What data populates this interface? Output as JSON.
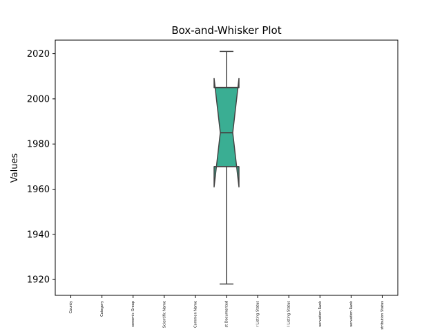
{
  "chart_data": {
    "type": "box",
    "title": "Box-and-Whisker Plot",
    "xlabel": "",
    "ylabel": "Values",
    "categories": [
      "County",
      "Category",
      "xonomic Group",
      "Scientific Name",
      "Common Name",
      "st Documented",
      "r Listing Status",
      "l Listing Status",
      "servation Rank",
      "servation Rank",
      "stribution Status"
    ],
    "yticks": [
      1920,
      1940,
      1960,
      1980,
      2000,
      2020
    ],
    "ylim": [
      1913,
      2026
    ],
    "boxes": [
      {
        "category_index": 5,
        "whisker_low": 1918,
        "q1": 1970,
        "median": 1985,
        "q3": 2005,
        "whisker_high": 2021,
        "notch_low": 1961,
        "notch_high": 2009,
        "notched": true,
        "color": "#3aae93"
      }
    ],
    "grid": false,
    "colors": {
      "box_fill": "#3aae93",
      "box_edge": "#444444",
      "axes": "#000000"
    }
  }
}
